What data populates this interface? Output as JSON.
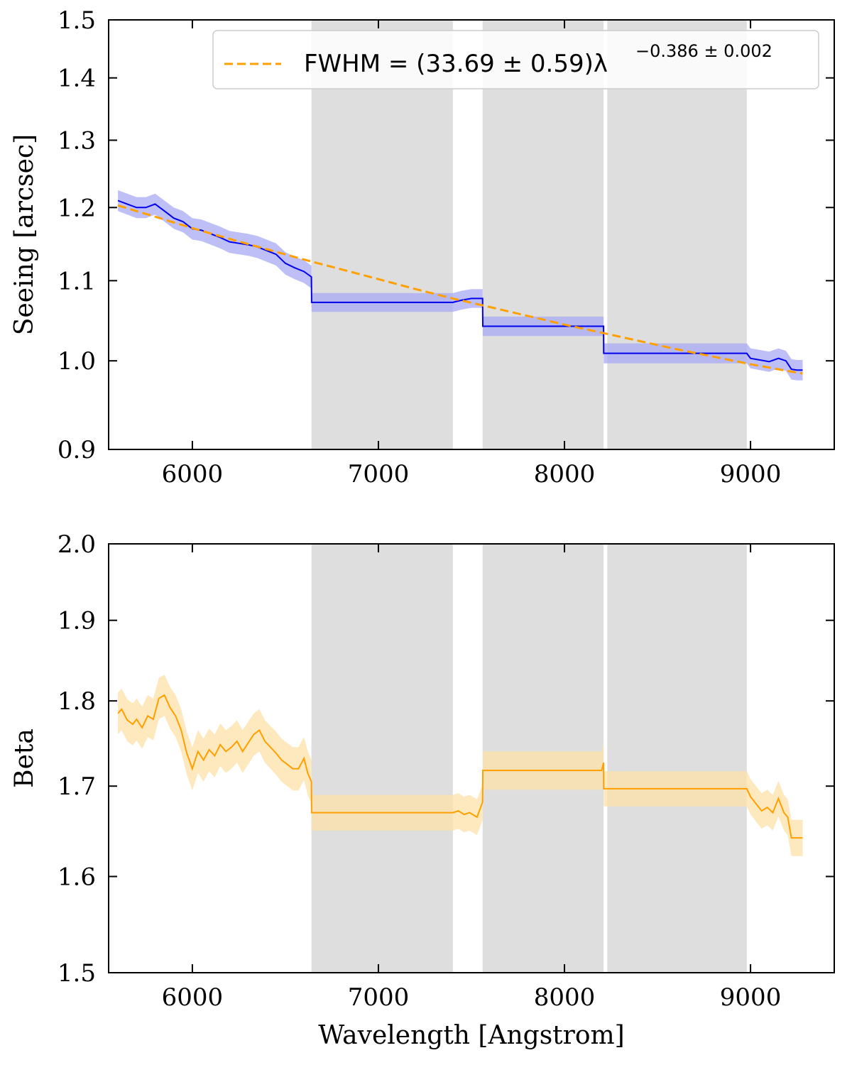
{
  "chart_data": [
    {
      "type": "line",
      "xlabel": "",
      "ylabel": "Seeing [arcsec]",
      "xlim": [
        5550,
        9450
      ],
      "ylim": [
        0.9,
        1.5
      ],
      "y_scale": "log",
      "xticks": [
        6000,
        7000,
        8000,
        9000
      ],
      "xtick_labels": [
        "6000",
        "7000",
        "8000",
        "9000"
      ],
      "yticks": [
        0.9,
        1.0,
        1.1,
        1.2,
        1.3,
        1.4,
        1.5
      ],
      "ytick_labels": [
        "0.9",
        "1.0",
        "1.1",
        "1.2",
        "1.3",
        "1.4",
        "1.5"
      ],
      "shaded_bands": [
        [
          6640,
          7400
        ],
        [
          7560,
          8210
        ],
        [
          8230,
          8980
        ]
      ],
      "legend": {
        "position": "top-right",
        "main": "FWHM = (33.69 ± 0.59)λ",
        "exponent": "−0.386 ± 0.002"
      },
      "series": [
        {
          "style": "line",
          "color": "#0000ee",
          "band_color": "#aaaaf5",
          "x": [
            5600,
            5650,
            5700,
            5750,
            5800,
            5850,
            5900,
            5950,
            6000,
            6050,
            6100,
            6150,
            6200,
            6250,
            6300,
            6350,
            6400,
            6450,
            6500,
            6550,
            6600,
            6640,
            6641,
            7400,
            7450,
            7500,
            7560,
            7561,
            8210,
            8211,
            8980,
            9000,
            9050,
            9100,
            9150,
            9190,
            9220,
            9250,
            9280
          ],
          "y": [
            1.21,
            1.205,
            1.2,
            1.2,
            1.205,
            1.195,
            1.185,
            1.18,
            1.17,
            1.168,
            1.163,
            1.158,
            1.152,
            1.15,
            1.148,
            1.145,
            1.14,
            1.135,
            1.123,
            1.117,
            1.112,
            1.105,
            1.072,
            1.072,
            1.075,
            1.077,
            1.077,
            1.042,
            1.042,
            1.009,
            1.009,
            1.003,
            1.001,
            0.999,
            1.003,
            1.0,
            0.99,
            0.989,
            0.989
          ],
          "err": [
            0.015,
            0.015,
            0.015,
            0.015,
            0.015,
            0.015,
            0.015,
            0.015,
            0.015,
            0.015,
            0.015,
            0.015,
            0.015,
            0.015,
            0.015,
            0.015,
            0.015,
            0.015,
            0.015,
            0.015,
            0.015,
            0.015,
            0.012,
            0.012,
            0.012,
            0.012,
            0.012,
            0.012,
            0.012,
            0.012,
            0.012,
            0.012,
            0.012,
            0.012,
            0.012,
            0.012,
            0.012,
            0.012,
            0.012
          ]
        },
        {
          "style": "dashed",
          "color": "#ffa000",
          "x": [
            5600,
            5800,
            6000,
            6200,
            6400,
            6600,
            6800,
            7000,
            7200,
            7400,
            7600,
            7800,
            8000,
            8200,
            8400,
            8600,
            8800,
            9000,
            9200,
            9280
          ],
          "y": [
            1.203,
            1.187,
            1.171,
            1.156,
            1.142,
            1.128,
            1.115,
            1.102,
            1.089,
            1.077,
            1.066,
            1.055,
            1.044,
            1.034,
            1.024,
            1.014,
            1.005,
            0.996,
            0.988,
            0.985
          ]
        }
      ]
    },
    {
      "type": "line",
      "xlabel": "Wavelength [Angstrom]",
      "ylabel": "Beta",
      "xlim": [
        5550,
        9450
      ],
      "ylim": [
        1.5,
        2.0
      ],
      "y_scale": "log",
      "xticks": [
        6000,
        7000,
        8000,
        9000
      ],
      "xtick_labels": [
        "6000",
        "7000",
        "8000",
        "9000"
      ],
      "yticks": [
        1.5,
        1.6,
        1.7,
        1.8,
        1.9,
        2.0
      ],
      "ytick_labels": [
        "1.5",
        "1.6",
        "1.7",
        "1.8",
        "1.9",
        "2.0"
      ],
      "shaded_bands": [
        [
          6640,
          7400
        ],
        [
          7560,
          8210
        ],
        [
          8230,
          8980
        ]
      ],
      "series": [
        {
          "style": "line",
          "color": "#ffa000",
          "band_color": "#fde0a8",
          "x": [
            5600,
            5620,
            5650,
            5680,
            5700,
            5730,
            5760,
            5790,
            5820,
            5850,
            5880,
            5910,
            5940,
            5970,
            6000,
            6030,
            6060,
            6090,
            6120,
            6150,
            6180,
            6210,
            6240,
            6270,
            6300,
            6330,
            6360,
            6390,
            6420,
            6450,
            6480,
            6510,
            6540,
            6570,
            6600,
            6620,
            6640,
            6641,
            7400,
            7430,
            7460,
            7490,
            7530,
            7560,
            7561,
            8200,
            8210,
            8211,
            8980,
            9000,
            9030,
            9060,
            9090,
            9120,
            9150,
            9180,
            9200,
            9220,
            9250,
            9280
          ],
          "y": [
            1.785,
            1.79,
            1.777,
            1.772,
            1.778,
            1.768,
            1.782,
            1.778,
            1.803,
            1.807,
            1.792,
            1.782,
            1.765,
            1.738,
            1.72,
            1.74,
            1.73,
            1.742,
            1.735,
            1.748,
            1.74,
            1.745,
            1.752,
            1.74,
            1.75,
            1.76,
            1.765,
            1.752,
            1.745,
            1.738,
            1.73,
            1.725,
            1.72,
            1.72,
            1.732,
            1.715,
            1.705,
            1.67,
            1.67,
            1.672,
            1.668,
            1.67,
            1.665,
            1.682,
            1.718,
            1.718,
            1.727,
            1.697,
            1.697,
            1.688,
            1.68,
            1.672,
            1.676,
            1.67,
            1.686,
            1.67,
            1.665,
            1.642,
            1.642,
            1.642
          ],
          "err": [
            0.025,
            0.025,
            0.025,
            0.025,
            0.025,
            0.025,
            0.025,
            0.025,
            0.025,
            0.025,
            0.025,
            0.025,
            0.025,
            0.025,
            0.025,
            0.025,
            0.025,
            0.025,
            0.025,
            0.025,
            0.025,
            0.025,
            0.025,
            0.025,
            0.025,
            0.025,
            0.025,
            0.025,
            0.025,
            0.025,
            0.025,
            0.025,
            0.025,
            0.025,
            0.025,
            0.025,
            0.025,
            0.02,
            0.02,
            0.02,
            0.02,
            0.02,
            0.02,
            0.02,
            0.022,
            0.022,
            0.022,
            0.02,
            0.02,
            0.02,
            0.02,
            0.02,
            0.02,
            0.02,
            0.02,
            0.02,
            0.02,
            0.02,
            0.02,
            0.02
          ]
        }
      ]
    }
  ]
}
